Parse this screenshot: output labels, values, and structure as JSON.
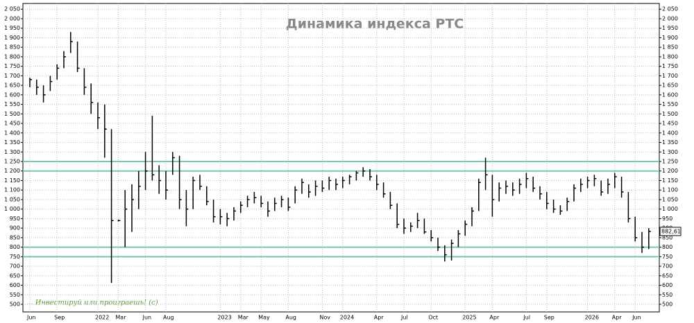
{
  "chart_data": {
    "type": "ohlc",
    "title": "Динамика индекса РТС",
    "annotation": "... Инвестируй или проиграешь! (c)",
    "categories": [
      "Jun",
      null,
      null,
      null,
      "Sep",
      null,
      null,
      null,
      null,
      null,
      "2022",
      null,
      null,
      "Mar",
      null,
      null,
      null,
      "Jun",
      null,
      null,
      "Aug",
      null,
      null,
      null,
      null,
      null,
      null,
      null,
      "2023",
      null,
      null,
      "Mar",
      null,
      null,
      "May",
      null,
      null,
      null,
      "Aug",
      null,
      null,
      null,
      null,
      "Nov",
      null,
      null,
      "2024",
      null,
      null,
      null,
      null,
      "Apr",
      null,
      null,
      null,
      "Jul",
      null,
      null,
      null,
      "Oct",
      null,
      null,
      null,
      null,
      "2025",
      null,
      null,
      null,
      "Apr",
      null,
      null,
      null,
      null,
      "Jul",
      null,
      null,
      "Sep",
      null,
      null,
      null,
      null,
      null,
      "2026",
      null,
      null,
      null,
      "Apr",
      null,
      null,
      "Jun",
      null,
      null
    ],
    "high": [
      1690,
      1680,
      1650,
      1700,
      1760,
      1830,
      1930,
      1880,
      1740,
      1660,
      1560,
      1550,
      1420,
      945,
      1100,
      1130,
      1200,
      1300,
      1490,
      1230,
      1200,
      1300,
      1280,
      1100,
      1170,
      1180,
      1120,
      1050,
      1000,
      980,
      1010,
      1040,
      1070,
      1090,
      1070,
      1040,
      1060,
      1070,
      1060,
      1120,
      1160,
      1130,
      1150,
      1150,
      1170,
      1160,
      1170,
      1180,
      1200,
      1220,
      1210,
      1180,
      1140,
      1090,
      1030,
      950,
      930,
      980,
      950,
      890,
      850,
      810,
      840,
      890,
      940,
      1010,
      1160,
      1270,
      1180,
      1140,
      1150,
      1140,
      1160,
      1190,
      1170,
      1120,
      1090,
      1050,
      1020,
      1060,
      1130,
      1160,
      1170,
      1180,
      1150,
      1160,
      1190,
      1170,
      1090,
      960,
      880,
      900
    ],
    "low": [
      1640,
      1600,
      1560,
      1620,
      1680,
      1740,
      1820,
      1720,
      1600,
      1500,
      1420,
      1270,
      612,
      935,
      800,
      880,
      1000,
      1100,
      1150,
      1080,
      1050,
      1180,
      1000,
      910,
      1000,
      1100,
      1020,
      930,
      920,
      910,
      940,
      980,
      1010,
      1030,
      1010,
      960,
      990,
      1010,
      990,
      1030,
      1080,
      1060,
      1070,
      1090,
      1100,
      1100,
      1110,
      1130,
      1150,
      1170,
      1150,
      1100,
      1060,
      1000,
      900,
      870,
      880,
      900,
      870,
      830,
      780,
      725,
      730,
      800,
      860,
      910,
      990,
      1100,
      960,
      1040,
      1080,
      1070,
      1080,
      1110,
      1090,
      1050,
      1000,
      980,
      970,
      990,
      1040,
      1090,
      1110,
      1120,
      1070,
      1080,
      1110,
      1060,
      930,
      830,
      770,
      790
    ],
    "close": [
      1680,
      1640,
      1600,
      1670,
      1740,
      1800,
      1880,
      1740,
      1640,
      1560,
      1480,
      1420,
      940,
      940,
      1000,
      1050,
      1120,
      1200,
      1180,
      1150,
      1100,
      1270,
      1050,
      1000,
      1150,
      1120,
      1040,
      960,
      960,
      950,
      990,
      1020,
      1050,
      1060,
      1030,
      990,
      1030,
      1050,
      1010,
      1100,
      1140,
      1090,
      1120,
      1110,
      1150,
      1130,
      1150,
      1170,
      1190,
      1200,
      1170,
      1130,
      1080,
      1020,
      920,
      900,
      910,
      940,
      880,
      850,
      800,
      760,
      820,
      870,
      920,
      990,
      1140,
      1180,
      1050,
      1110,
      1120,
      1100,
      1130,
      1160,
      1110,
      1080,
      1030,
      1000,
      990,
      1040,
      1110,
      1130,
      1150,
      1160,
      1090,
      1130,
      1170,
      1090,
      950,
      850,
      800,
      883
    ],
    "last_price": {
      "value": 882.61,
      "label": "882,61"
    },
    "hlines": [
      1250,
      1200,
      800,
      750
    ],
    "hline_color": "#7cc4b8",
    "color": "#000000",
    "grid": true,
    "ylim": [
      460,
      2080
    ],
    "yticks": [
      500,
      550,
      600,
      650,
      700,
      750,
      800,
      850,
      900,
      950,
      {
        "value": 1000,
        "label": "1 000"
      },
      {
        "value": 1050,
        "label": "1 050"
      },
      {
        "value": 1100,
        "label": "1 100"
      },
      {
        "value": 1150,
        "label": "1 150"
      },
      {
        "value": 1200,
        "label": "1 200"
      },
      {
        "value": 1250,
        "label": "1 250"
      },
      {
        "value": 1300,
        "label": "1 300"
      },
      {
        "value": 1350,
        "label": "1 350"
      },
      {
        "value": 1400,
        "label": "1 400"
      },
      {
        "value": 1450,
        "label": "1 450"
      },
      {
        "value": 1500,
        "label": "1 500"
      },
      {
        "value": 1550,
        "label": "1 550"
      },
      {
        "value": 1600,
        "label": "1 600"
      },
      {
        "value": 1650,
        "label": "1 650"
      },
      {
        "value": 1700,
        "label": "1 700"
      },
      {
        "value": 1750,
        "label": "1 750"
      },
      {
        "value": 1800,
        "label": "1 800"
      },
      {
        "value": 1850,
        "label": "1 850"
      },
      {
        "value": 1900,
        "label": "1 900"
      },
      {
        "value": 1950,
        "label": "1 950"
      },
      {
        "value": 2000,
        "label": "2 000"
      },
      {
        "value": 2050,
        "label": "2 050"
      }
    ]
  }
}
